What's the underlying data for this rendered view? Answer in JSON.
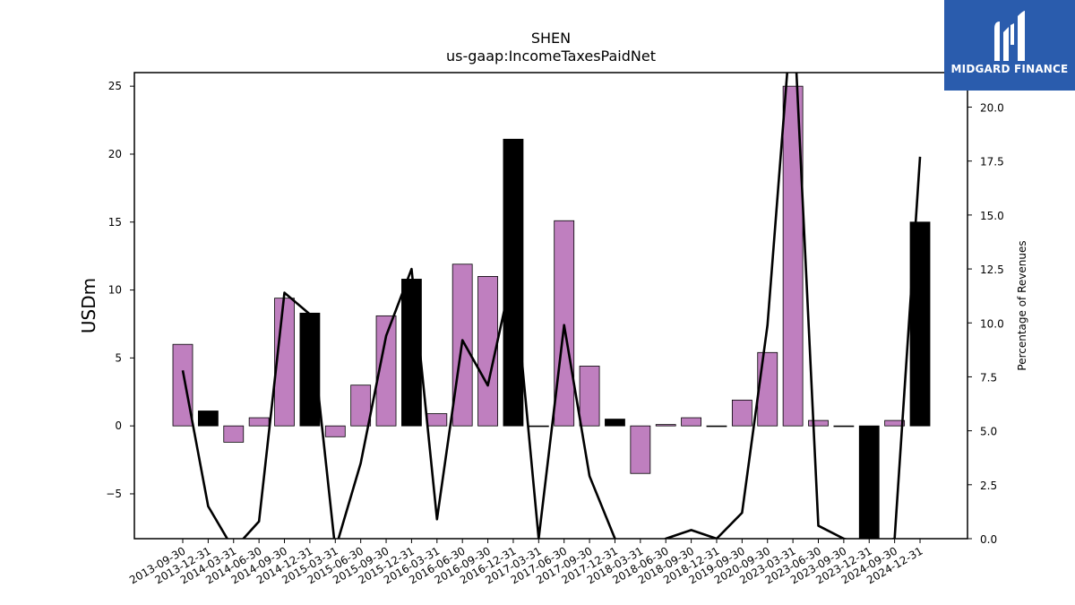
{
  "header": {
    "ticker": "SHEN",
    "concept": "us-gaap:IncomeTaxesPaidNet"
  },
  "logo": {
    "brand_text": "MIDGARD FINANCE",
    "icon": "midgard-logo-icon",
    "background": "#2a5cad"
  },
  "chart_data": {
    "type": "bar",
    "title": "SHEN",
    "subtitle": "us-gaap:IncomeTaxesPaidNet",
    "ylabel": "USDm",
    "y2label": "Percentage of Revenues",
    "ylim": [
      -8.3,
      26
    ],
    "y2lim": [
      0,
      21.6
    ],
    "yticks": [
      -5,
      0,
      5,
      10,
      15,
      20,
      25
    ],
    "y2ticks": [
      0.0,
      2.5,
      5.0,
      7.5,
      10.0,
      12.5,
      15.0,
      17.5,
      20.0
    ],
    "categories": [
      "2013-09-30",
      "2013-12-31",
      "2014-03-31",
      "2014-06-30",
      "2014-09-30",
      "2014-12-31",
      "2015-03-31",
      "2015-06-30",
      "2015-09-30",
      "2015-12-31",
      "2016-03-31",
      "2016-06-30",
      "2016-09-30",
      "2016-12-31",
      "2017-03-31",
      "2017-06-30",
      "2017-09-30",
      "2017-12-31",
      "2018-03-31",
      "2018-06-30",
      "2018-09-30",
      "2018-12-31",
      "2019-09-30",
      "2020-09-30",
      "2023-03-31",
      "2023-06-30",
      "2023-09-30",
      "2023-12-31",
      "2024-09-30",
      "2024-12-31"
    ],
    "series": [
      {
        "kind": "bar",
        "values": [
          6.0,
          1.1,
          -1.2,
          0.6,
          9.4,
          8.3,
          -0.8,
          3.0,
          8.1,
          10.8,
          0.9,
          11.9,
          11.0,
          21.1,
          0.0,
          15.1,
          4.4,
          0.5,
          -3.5,
          0.1,
          0.6,
          0.0,
          1.9,
          5.4,
          25.0,
          0.4,
          0.0,
          -8.3,
          0.4,
          15.0
        ],
        "annual": [
          false,
          true,
          false,
          false,
          false,
          true,
          false,
          false,
          false,
          true,
          false,
          false,
          false,
          true,
          false,
          false,
          false,
          true,
          false,
          false,
          false,
          true,
          false,
          false,
          false,
          false,
          false,
          true,
          false,
          true
        ]
      },
      {
        "kind": "line",
        "axis": "right",
        "values": [
          7.8,
          1.5,
          -0.5,
          0.8,
          11.4,
          10.4,
          -0.5,
          3.5,
          9.4,
          12.5,
          0.9,
          9.2,
          7.1,
          12.5,
          0.0,
          9.9,
          2.9,
          0.0,
          -0.7,
          0.0,
          0.4,
          0.0,
          1.2,
          9.9,
          25.0,
          0.6,
          0.0,
          -0.3,
          0.0,
          17.7
        ]
      }
    ],
    "colors": {
      "quarter_bar": "#bf7fbf",
      "annual_bar": "#000000",
      "line": "#000000"
    },
    "grid": false,
    "legend": "none"
  }
}
